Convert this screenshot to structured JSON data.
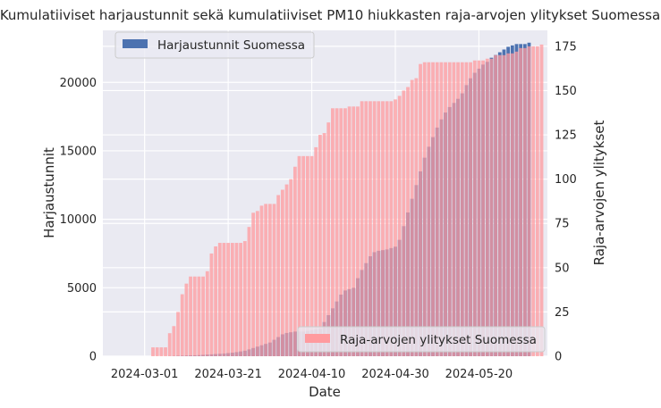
{
  "chart_data": {
    "type": "bar",
    "title": "Kumulatiiviset harjaustunnit sekä kumulatiiviset PM10 hiukkasten raja-arvojen ylitykset Suomessa",
    "xlabel": "Date",
    "ylabel_left": "Harjaustunnit",
    "ylabel_right": "Raja-arvojen ylitykset",
    "ylim_left": [
      0,
      23800
    ],
    "ylim_right": [
      0,
      184
    ],
    "x_ticks": [
      "2024-03-01",
      "2024-03-21",
      "2024-04-10",
      "2024-04-30",
      "2024-05-20"
    ],
    "y_ticks_left": [
      0,
      5000,
      10000,
      15000,
      20000
    ],
    "y_ticks_right": [
      0,
      25,
      50,
      75,
      100,
      125,
      150,
      175
    ],
    "grid": true,
    "legend_left": {
      "position": "upper left",
      "label": "Harjaustunnit Suomessa",
      "color": "#4c72b0"
    },
    "legend_right": {
      "position": "lower right",
      "label": "Raja-arvojen ylitykset Suomessa",
      "color": "#ff9a9e"
    },
    "x_start": "2024-02-22",
    "series": [
      {
        "name": "Harjaustunnit Suomessa",
        "axis": "left",
        "values": [
          0,
          0,
          0,
          0,
          0,
          0,
          0,
          0,
          0,
          0,
          0,
          0,
          0,
          0,
          10,
          20,
          30,
          40,
          50,
          60,
          70,
          80,
          100,
          120,
          140,
          160,
          180,
          200,
          230,
          260,
          300,
          350,
          400,
          500,
          600,
          700,
          800,
          900,
          1000,
          1200,
          1400,
          1600,
          1700,
          1750,
          1800,
          1800,
          1800,
          1850,
          1900,
          1950,
          2000,
          2500,
          3000,
          3500,
          4000,
          4500,
          4800,
          4900,
          5000,
          5700,
          6300,
          6800,
          7300,
          7600,
          7700,
          7750,
          7800,
          7900,
          8000,
          8500,
          9500,
          10500,
          11500,
          12500,
          13500,
          14500,
          15300,
          16000,
          16700,
          17300,
          17800,
          18200,
          18500,
          18800,
          19200,
          19800,
          20300,
          20700,
          21000,
          21300,
          21500,
          21800,
          22000,
          22200,
          22400,
          22600,
          22700,
          22800,
          22800,
          22800,
          22900
        ]
      },
      {
        "name": "Raja-arvojen ylitykset Suomessa",
        "axis": "right",
        "values": [
          0,
          0,
          0,
          0,
          0,
          0,
          0,
          0,
          0,
          0,
          5,
          5,
          5,
          5,
          13,
          17,
          25,
          35,
          41,
          45,
          45,
          45,
          45,
          48,
          58,
          62,
          64,
          64,
          64,
          64,
          64,
          64,
          65,
          73,
          81,
          82,
          85,
          86,
          86,
          86,
          91,
          94,
          97,
          100,
          107,
          113,
          113,
          113,
          113,
          118,
          125,
          126,
          132,
          140,
          140,
          140,
          140,
          141,
          141,
          141,
          144,
          144,
          144,
          144,
          144,
          144,
          144,
          144,
          145,
          147,
          150,
          152,
          156,
          157,
          165,
          166,
          166,
          166,
          166,
          166,
          166,
          166,
          166,
          166,
          166,
          166,
          166,
          167,
          167,
          167,
          168,
          168,
          170,
          170,
          170,
          171,
          171,
          172,
          174,
          174,
          175,
          175,
          175,
          176
        ]
      }
    ]
  }
}
